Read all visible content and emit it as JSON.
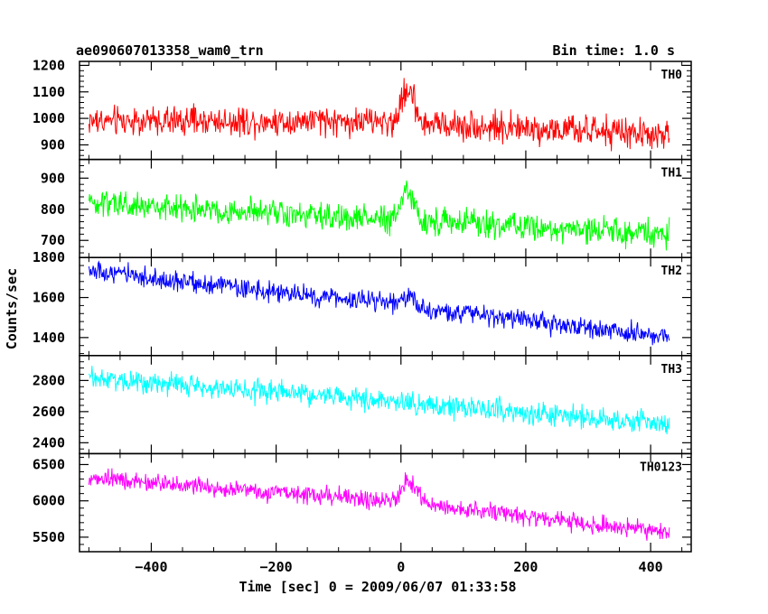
{
  "header": {
    "left": "ae090607013358_wam0_trn",
    "right": "Bin time: 1.0 s"
  },
  "chart_data": {
    "type": "line",
    "ylabel": "Counts/sec",
    "xlabel": "Time [sec] 0 = 2009/06/07 01:33:58",
    "xlim": [
      -515,
      465
    ],
    "x_range": [
      -500,
      430
    ],
    "bin_time_s": 1.0,
    "x_ticks": [
      -400,
      -200,
      0,
      200,
      400
    ],
    "x_tick_labels": [
      "−400",
      "−200",
      "0",
      "200",
      "400"
    ],
    "panels": [
      {
        "name": "TH0",
        "color": "#ff0000",
        "ylim": [
          845,
          1215
        ],
        "y_ticks": [
          900,
          1000,
          1100,
          1200
        ],
        "trend": [
          [
            -500,
            990
          ],
          [
            -100,
            990
          ],
          [
            0,
            985
          ],
          [
            430,
            935
          ]
        ],
        "noise": 38,
        "bursts": [
          {
            "center": 12,
            "peak": 170,
            "width": 14
          }
        ]
      },
      {
        "name": "TH1",
        "color": "#00ff00",
        "ylim": [
          645,
          960
        ],
        "y_ticks": [
          700,
          800,
          900
        ],
        "trend": [
          [
            -500,
            820
          ],
          [
            0,
            765
          ],
          [
            430,
            720
          ]
        ],
        "noise": 30,
        "bursts": [
          {
            "center": 10,
            "peak": 120,
            "width": 15
          }
        ]
      },
      {
        "name": "TH2",
        "color": "#0000ff",
        "ylim": [
          1310,
          1800
        ],
        "y_ticks": [
          1400,
          1600,
          1800
        ],
        "trend": [
          [
            -500,
            1730
          ],
          [
            0,
            1560
          ],
          [
            430,
            1400
          ]
        ],
        "noise": 35,
        "bursts": [
          {
            "center": 10,
            "peak": 80,
            "width": 12
          }
        ]
      },
      {
        "name": "TH3",
        "color": "#00ffff",
        "ylim": [
          2330,
          2960
        ],
        "y_ticks": [
          2400,
          2600,
          2800
        ],
        "trend": [
          [
            -500,
            2820
          ],
          [
            0,
            2660
          ],
          [
            430,
            2520
          ]
        ],
        "noise": 50,
        "bursts": []
      },
      {
        "name": "TH0123",
        "color": "#ff00ff",
        "ylim": [
          5300,
          6650
        ],
        "y_ticks": [
          5500,
          6000,
          6500
        ],
        "trend": [
          [
            -500,
            6320
          ],
          [
            0,
            5980
          ],
          [
            430,
            5560
          ]
        ],
        "noise": 85,
        "bursts": [
          {
            "center": 14,
            "peak": 380,
            "width": 18
          }
        ]
      }
    ]
  }
}
